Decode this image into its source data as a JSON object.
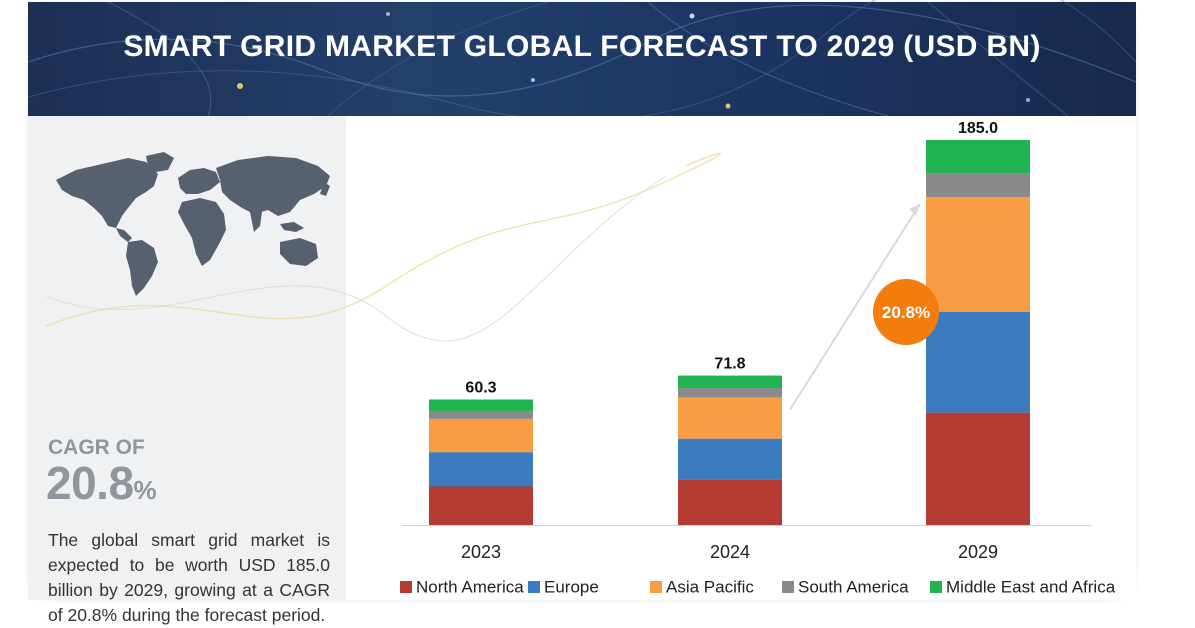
{
  "title": "SMART GRID MARKET GLOBAL FORECAST TO 2029 (USD BN)",
  "cagr": {
    "label": "CAGR OF",
    "value": "20.8",
    "unit": "%"
  },
  "description": "The global smart grid market is expected to be worth USD 185.0 billion by 2029, growing at a CAGR of 20.8% during the forecast period.",
  "growth_badge": "20.8%",
  "colors": {
    "banner": "#1f3a64",
    "left_panel": "#f0f1f3",
    "map": "#56606f",
    "badge": "#f37d0c"
  },
  "icons": {
    "world_map": "world-map-icon"
  },
  "chart_data": {
    "type": "bar",
    "stacked": true,
    "categories": [
      "2023",
      "2024",
      "2029"
    ],
    "totals": [
      "60.3",
      "71.8",
      "185.0"
    ],
    "series": [
      {
        "name": "North America",
        "color": "#b33b32",
        "values": [
          18.5,
          21.8,
          54.0
        ]
      },
      {
        "name": "Europe",
        "color": "#3d7bbf",
        "values": [
          16.5,
          19.7,
          48.5
        ]
      },
      {
        "name": "Asia Pacific",
        "color": "#f99d45",
        "values": [
          16.0,
          19.8,
          55.0
        ]
      },
      {
        "name": "South America",
        "color": "#8a8a8a",
        "values": [
          3.8,
          4.5,
          11.5
        ]
      },
      {
        "name": "Middle East and Africa",
        "color": "#20b352",
        "values": [
          5.5,
          6.0,
          16.0
        ]
      }
    ],
    "ylim": [
      0,
      185.0
    ],
    "grid": false,
    "legend_position": "bottom"
  }
}
